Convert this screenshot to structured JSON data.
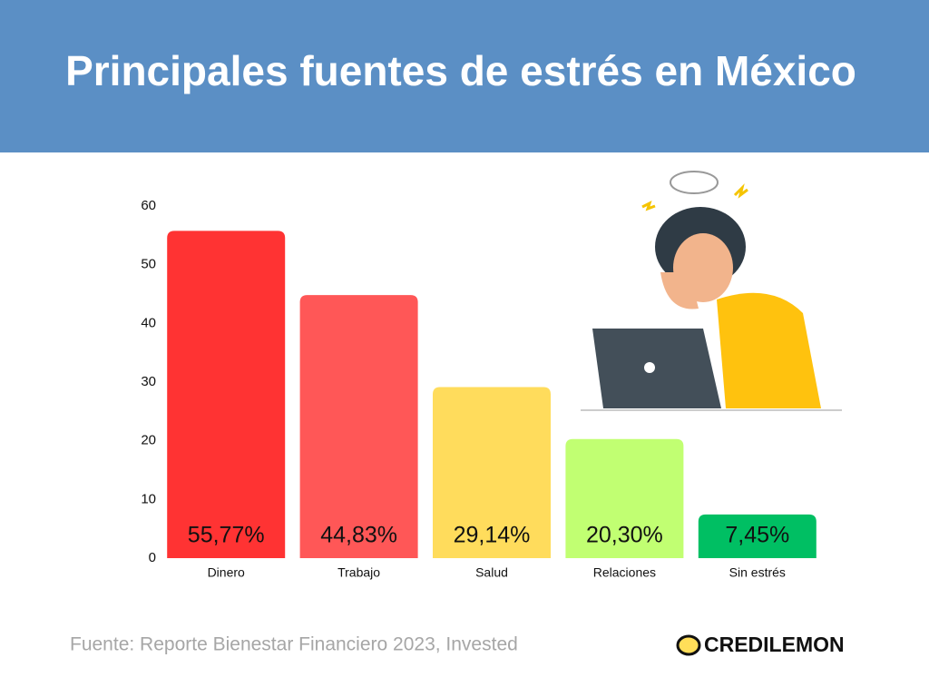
{
  "chart_data": {
    "type": "bar",
    "title": "Principales fuentes de estrés en México",
    "categories": [
      "Dinero",
      "Trabajo",
      "Salud",
      "Relaciones",
      "Sin estrés"
    ],
    "values": [
      55.77,
      44.83,
      29.14,
      20.3,
      7.45
    ],
    "value_labels": [
      "55,77%",
      "44,83%",
      "29,14%",
      "20,30%",
      "7,45%"
    ],
    "colors": [
      "#ff3333",
      "#ff5757",
      "#ffdc5c",
      "#c1ff72",
      "#00bf63"
    ],
    "ylim": [
      0,
      60
    ],
    "yticks": [
      0,
      10,
      20,
      30,
      40,
      50,
      60
    ],
    "grid": false,
    "source": "Fuente: Reporte Bienestar Financiero 2023, Invested"
  },
  "brand": "CREDILEMON"
}
